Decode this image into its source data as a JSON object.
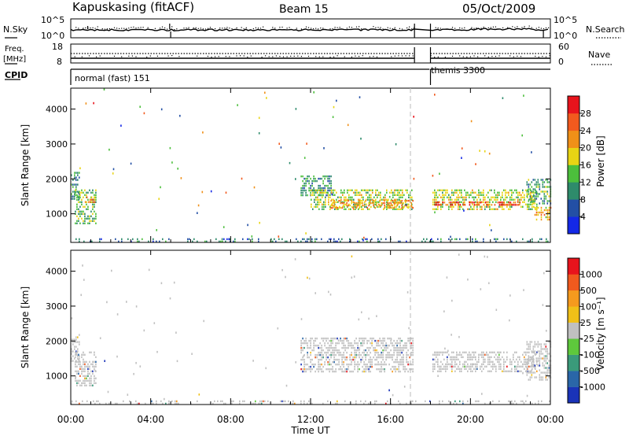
{
  "header": {
    "station": "Kapuskasing (fitACF)",
    "beam": "Beam 15",
    "date": "05/Oct/2009"
  },
  "summary_panels": {
    "nsky": {
      "label": "N.Sky",
      "ticks": [
        "10^5",
        "10^0"
      ]
    },
    "nsearch": {
      "label": "N.Search",
      "ticks": [
        "10^5",
        "10^0"
      ]
    },
    "freq": {
      "label_line1": "Freq.",
      "label_line2": "[MHz]",
      "ticks": [
        "18",
        "8"
      ]
    },
    "nave": {
      "label": "Nave",
      "ticks": [
        "60",
        "0"
      ]
    },
    "cpid": {
      "label": "CPID",
      "segments": [
        {
          "name": "normal (fast) 151",
          "start_h": 0.0,
          "end_h": 17.95
        },
        {
          "name": "themis 3300",
          "start_h": 18.0,
          "end_h": 24.0
        }
      ]
    }
  },
  "axes": {
    "xlabel": "Time UT",
    "xticks": [
      "00:00",
      "04:00",
      "08:00",
      "12:00",
      "16:00",
      "20:00",
      "00:00"
    ],
    "ylabel": "Slant Range [km]",
    "yticks": [
      "1000",
      "2000",
      "3000",
      "4000"
    ]
  },
  "colorbars": {
    "power": {
      "label": "Power [dB]",
      "ticks": [
        "4",
        "8",
        "12",
        "16",
        "20",
        "24",
        "28"
      ],
      "colors": [
        "#1428e6",
        "#234fa5",
        "#2e8b6b",
        "#4cbf3c",
        "#e8d414",
        "#f09018",
        "#f25a1e",
        "#e8141c"
      ]
    },
    "velocity": {
      "label": "Velocity [m s⁻¹]",
      "ticks": [
        "1000",
        "500",
        "100",
        "25",
        "-25",
        "-100",
        "-500",
        "-1000"
      ],
      "colors": [
        "#1a33b8",
        "#2a66a8",
        "#3a9a7a",
        "#5ec83c",
        "#c0c0c0",
        "#f0c018",
        "#f59a1e",
        "#f05a1e",
        "#e8141c"
      ]
    }
  },
  "chart_data": [
    {
      "type": "heatmap",
      "panel": "power",
      "x_unit": "hours UT",
      "xlim": [
        0,
        24
      ],
      "y_unit": "km",
      "ylim": [
        180,
        4600
      ],
      "data_gap_hours": [
        17.2,
        18.0
      ],
      "echo_regions": [
        {
          "t_start": 0.0,
          "t_end": 0.4,
          "r_low": 1400,
          "r_high": 2200,
          "power_db": 10
        },
        {
          "t_start": 0.2,
          "t_end": 1.3,
          "r_low": 700,
          "r_high": 1700,
          "power_db": 14
        },
        {
          "t_start": 0.7,
          "t_end": 1.2,
          "r_low": 1300,
          "r_high": 1500,
          "power_db": 22
        },
        {
          "t_start": 11.5,
          "t_end": 13.0,
          "r_low": 1500,
          "r_high": 2100,
          "power_db": 10
        },
        {
          "t_start": 12.0,
          "t_end": 17.1,
          "r_low": 1100,
          "r_high": 1700,
          "power_db": 16
        },
        {
          "t_start": 13.0,
          "t_end": 17.1,
          "r_low": 1150,
          "r_high": 1400,
          "power_db": 22
        },
        {
          "t_start": 18.1,
          "t_end": 23.3,
          "r_low": 1150,
          "r_high": 1700,
          "power_db": 16
        },
        {
          "t_start": 18.2,
          "t_end": 22.5,
          "r_low": 1250,
          "r_high": 1350,
          "power_db": 27
        },
        {
          "t_start": 22.8,
          "t_end": 24.0,
          "r_low": 1300,
          "r_high": 2000,
          "power_db": 12
        },
        {
          "t_start": 23.2,
          "t_end": 24.0,
          "r_low": 850,
          "r_high": 1200,
          "power_db": 20
        },
        {
          "t_start": 0.0,
          "t_end": 24.0,
          "r_low": 200,
          "r_high": 300,
          "power_db": 8
        }
      ]
    },
    {
      "type": "heatmap",
      "panel": "velocity",
      "x_unit": "hours UT",
      "xlim": [
        0,
        24
      ],
      "y_unit": "km",
      "ylim": [
        180,
        4600
      ],
      "data_gap_hours": [
        17.2,
        18.0
      ],
      "echo_regions": [
        {
          "t_start": 0.0,
          "t_end": 0.4,
          "r_low": 1400,
          "r_high": 2200,
          "velocity": 0
        },
        {
          "t_start": 0.2,
          "t_end": 1.3,
          "r_low": 700,
          "r_high": 1700,
          "velocity": 0
        },
        {
          "t_start": 11.5,
          "t_end": 17.1,
          "r_low": 1100,
          "r_high": 2100,
          "velocity": 0
        },
        {
          "t_start": 18.1,
          "t_end": 23.3,
          "r_low": 1150,
          "r_high": 1700,
          "velocity": 0
        },
        {
          "t_start": 22.8,
          "t_end": 24.0,
          "r_low": 850,
          "r_high": 2000,
          "velocity": 0
        },
        {
          "t_start": 0.0,
          "t_end": 24.0,
          "r_low": 200,
          "r_high": 300,
          "velocity": 0
        }
      ]
    }
  ]
}
